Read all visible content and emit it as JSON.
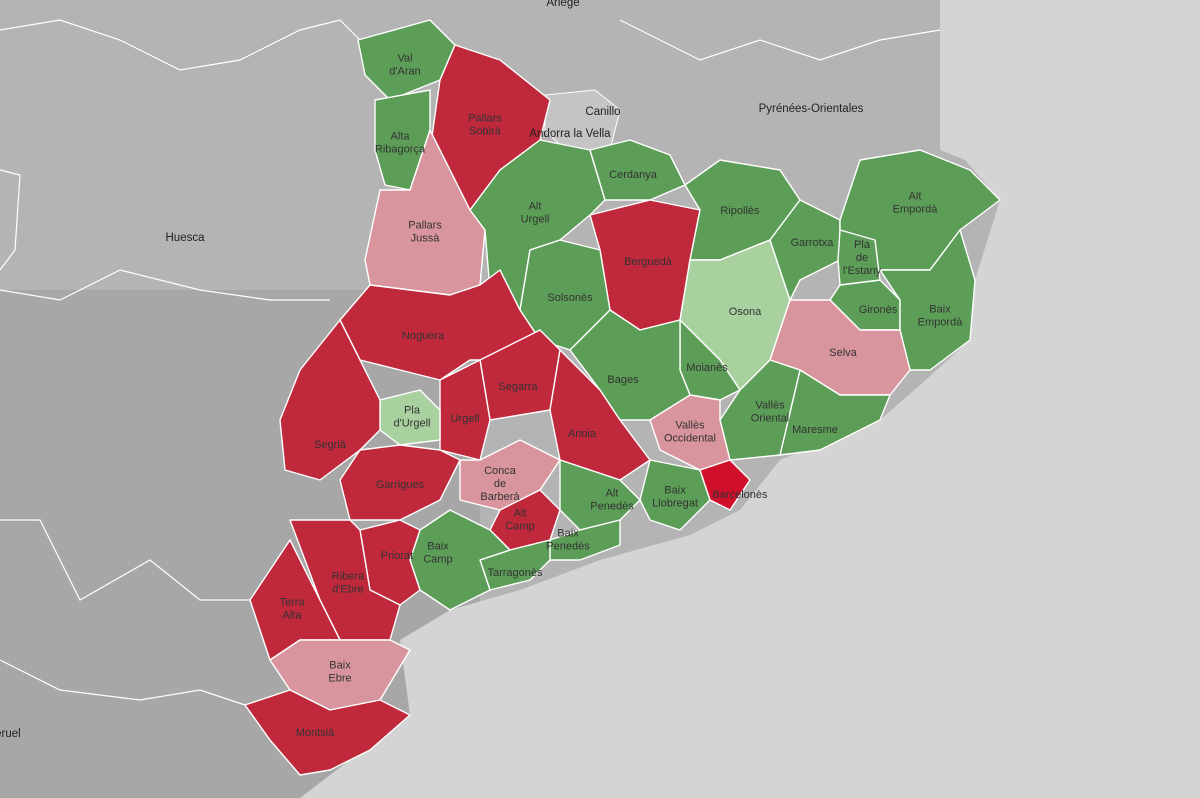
{
  "map": {
    "places": [
      "Ariège",
      "Canillo",
      "Andorra la Vella",
      "Pyrénées-Orientales",
      "Huesca",
      "Teruel"
    ],
    "regions": [
      {
        "label": "Val d'Aran",
        "color": "#5c9e57"
      },
      {
        "label": "Pallars Sobirà",
        "color": "#c0283c"
      },
      {
        "label": "Alta Ribagorça",
        "color": "#5c9e57"
      },
      {
        "label": "Pallars Jussà",
        "color": "#d9959e"
      },
      {
        "label": "Alt Urgell",
        "color": "#5c9e57"
      },
      {
        "label": "Cerdanya",
        "color": "#5c9e57"
      },
      {
        "label": "Berguedà",
        "color": "#c0283c"
      },
      {
        "label": "Solsonès",
        "color": "#5c9e57"
      },
      {
        "label": "Ripollès",
        "color": "#5c9e57"
      },
      {
        "label": "Osona",
        "color": "#a9d09f"
      },
      {
        "label": "Garrotxa",
        "color": "#5c9e57"
      },
      {
        "label": "Alt Empordà",
        "color": "#5c9e57"
      },
      {
        "label": "Gironès",
        "color": "#5c9e57"
      },
      {
        "label": "Pla de l'Estany",
        "color": "#5c9e57"
      },
      {
        "label": "Baix Empordà",
        "color": "#5c9e57"
      },
      {
        "label": "Selva",
        "color": "#d9959e"
      },
      {
        "label": "Maresme",
        "color": "#5c9e57"
      },
      {
        "label": "Vallès Oriental",
        "color": "#5c9e57"
      },
      {
        "label": "Moianès",
        "color": "#5c9e57"
      },
      {
        "label": "Bages",
        "color": "#5c9e57"
      },
      {
        "label": "Noguera",
        "color": "#c0283c"
      },
      {
        "label": "Segarra",
        "color": "#c0283c"
      },
      {
        "label": "Urgell",
        "color": "#c0283c"
      },
      {
        "label": "Pla d'Urgell",
        "color": "#a9d09f"
      },
      {
        "label": "Segrià",
        "color": "#c0283c"
      },
      {
        "label": "Anoia",
        "color": "#c0283c"
      },
      {
        "label": "Garrigues",
        "color": "#c0283c"
      },
      {
        "label": "Conca de Barberà",
        "color": "#d9959e"
      },
      {
        "label": "Alt Camp",
        "color": "#c0283c"
      },
      {
        "label": "Alt Penedès",
        "color": "#5c9e57"
      },
      {
        "label": "Vallès Occidental",
        "color": "#d9959e"
      },
      {
        "label": "Baix Llobregat",
        "color": "#5c9e57"
      },
      {
        "label": "Barcelonès",
        "color": "#d0102a"
      },
      {
        "label": "Baix Penedès",
        "color": "#5c9e57"
      },
      {
        "label": "Tarragonès",
        "color": "#5c9e57"
      },
      {
        "label": "Baix Camp",
        "color": "#5c9e57"
      },
      {
        "label": "Priorat",
        "color": "#c0283c"
      },
      {
        "label": "Ribera d'Ebre",
        "color": "#c0283c"
      },
      {
        "label": "Terra Alta",
        "color": "#c0283c"
      },
      {
        "label": "Baix Ebre",
        "color": "#d9959e"
      },
      {
        "label": "Montsià",
        "color": "#c0283c"
      }
    ]
  }
}
